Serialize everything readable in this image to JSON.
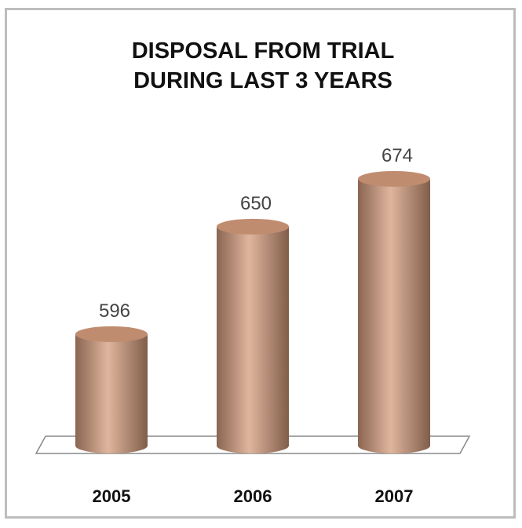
{
  "chart_data": {
    "type": "bar",
    "title": "DISPOSAL FROM TRIAL DURING LAST 3 YEARS",
    "categories": [
      "2005",
      "2006",
      "2007"
    ],
    "values": [
      596,
      650,
      674
    ],
    "color": "#d59c7c",
    "ylim": [
      540,
      700
    ]
  }
}
